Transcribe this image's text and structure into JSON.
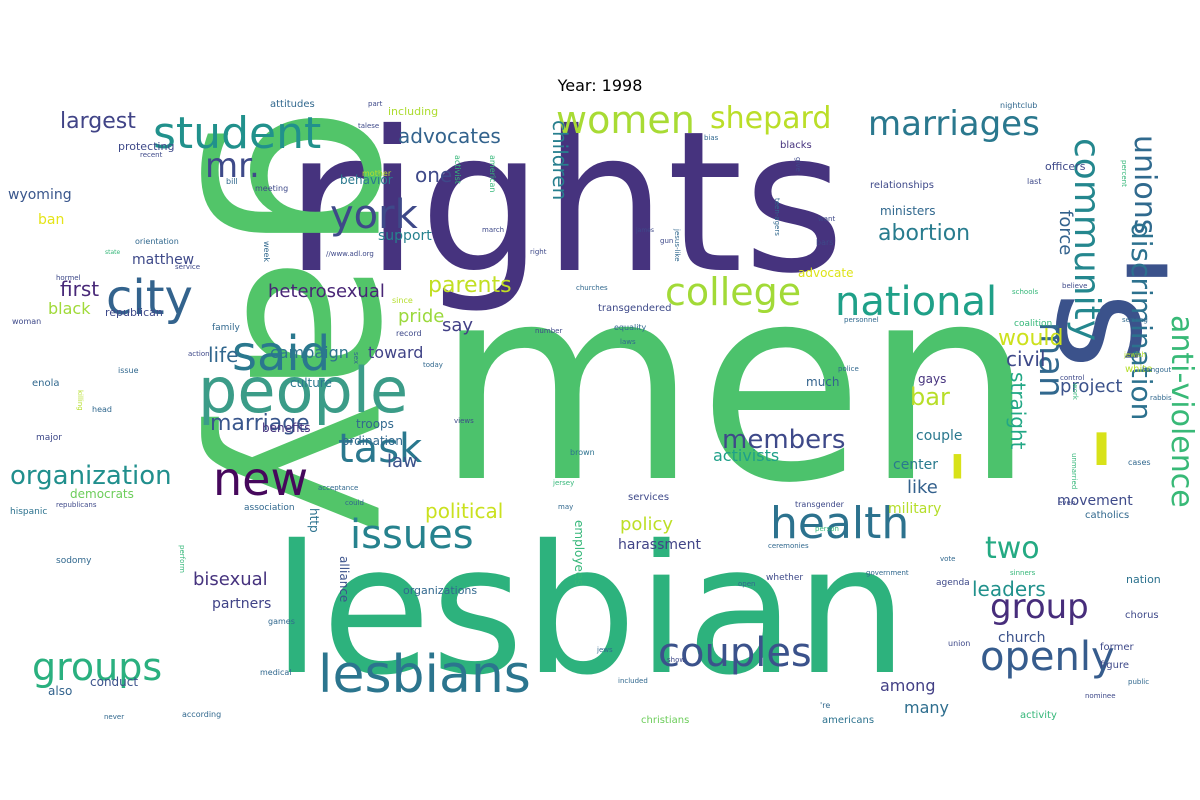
{
  "title": "Year: 1998",
  "palette": {
    "dark_purple": "#482878",
    "indigo": "#3e4989",
    "blue": "#31688e",
    "teal": "#26828e",
    "sea_green": "#1f9e89",
    "green": "#35b779",
    "light_green": "#6ece58",
    "lime": "#b5de2b",
    "yellow": "#e3e418"
  },
  "words": [
    {
      "text": "men",
      "color": "#4cc26c"
    },
    {
      "text": "rights",
      "color": "#46337e"
    },
    {
      "text": "gay",
      "color": "#52c569"
    },
    {
      "text": "lesbian",
      "color": "#2db27d"
    },
    {
      "text": "'s",
      "color": "#3b528b"
    },
    {
      "text": "people",
      "color": "#3b9c88"
    },
    {
      "text": "said",
      "color": "#2a788e"
    },
    {
      "text": "city",
      "color": "#33638d"
    },
    {
      "text": "new",
      "color": "#46085c"
    },
    {
      "text": "student",
      "color": "#21918c"
    },
    {
      "text": "york",
      "color": "#3e4989"
    },
    {
      "text": "mr.",
      "color": "#3e4a89"
    },
    {
      "text": "health",
      "color": "#2c728e"
    },
    {
      "text": "lesbians",
      "color": "#2b758e"
    },
    {
      "text": "couples",
      "color": "#3b528b"
    },
    {
      "text": "issues",
      "color": "#26828e"
    },
    {
      "text": "groups",
      "color": "#2ab07f"
    },
    {
      "text": "openly",
      "color": "#365c8d"
    },
    {
      "text": "group",
      "color": "#472d7b"
    },
    {
      "text": "national",
      "color": "#1fa088"
    },
    {
      "text": "college",
      "color": "#a2da37"
    },
    {
      "text": "women",
      "color": "#a8db34"
    },
    {
      "text": "shepard",
      "color": "#bade28"
    },
    {
      "text": "marriages",
      "color": "#2a788e"
    },
    {
      "text": "community",
      "color": "#24878e"
    },
    {
      "text": "unions",
      "color": "#306a8e"
    },
    {
      "text": "anti-violence",
      "color": "#38b977"
    },
    {
      "text": "discrimination",
      "color": "#2c718e"
    },
    {
      "text": "man",
      "color": "#31688e"
    },
    {
      "text": "'",
      "color": "#d8e219"
    },
    {
      "text": "task",
      "color": "#2a788e"
    },
    {
      "text": "members",
      "color": "#3e4989"
    },
    {
      "text": "two",
      "color": "#24aa83"
    },
    {
      "text": "organization",
      "color": "#218f8d"
    },
    {
      "text": "marriage",
      "color": "#39568c"
    },
    {
      "text": "largest",
      "color": "#414487"
    },
    {
      "text": "advocates",
      "color": "#33638d"
    },
    {
      "text": "abortion",
      "color": "#287c8e"
    },
    {
      "text": "children",
      "color": "#277f8e"
    },
    {
      "text": "one",
      "color": "#3e4989"
    },
    {
      "text": "parents",
      "color": "#c2df23"
    },
    {
      "text": "heterosexual",
      "color": "#482576"
    },
    {
      "text": "life",
      "color": "#31678e"
    },
    {
      "text": "first",
      "color": "#482878"
    },
    {
      "text": "black",
      "color": "#a0da39"
    },
    {
      "text": "say",
      "color": "#424086"
    },
    {
      "text": "pride",
      "color": "#9bd93c"
    },
    {
      "text": "toward",
      "color": "#414487"
    },
    {
      "text": "campaign",
      "color": "#2c738e"
    },
    {
      "text": "bar",
      "color": "#b8de29"
    },
    {
      "text": "would",
      "color": "#cde11d"
    },
    {
      "text": "civil",
      "color": "#3e4989"
    },
    {
      "text": "project",
      "color": "#3b528b"
    },
    {
      "text": "straight",
      "color": "#22a785"
    },
    {
      "text": "force",
      "color": "#33628d"
    },
    {
      "text": "law",
      "color": "#3b528b"
    },
    {
      "text": "political",
      "color": "#cae11f"
    },
    {
      "text": "policy",
      "color": "#bddf26"
    },
    {
      "text": "like",
      "color": "#34618d"
    },
    {
      "text": "center",
      "color": "#297a8e"
    },
    {
      "text": "couple",
      "color": "#2a788e"
    },
    {
      "text": "activists",
      "color": "#1fa088"
    },
    {
      "text": "leaders",
      "color": "#21918c"
    },
    {
      "text": "among",
      "color": "#423f85"
    },
    {
      "text": "many",
      "color": "#2e6e8e"
    },
    {
      "text": "church",
      "color": "#3b528b"
    },
    {
      "text": "military",
      "color": "#b5de2b"
    },
    {
      "text": "movement",
      "color": "#3e4a89"
    },
    {
      "text": "harassment",
      "color": "#414487"
    },
    {
      "text": "bisexual",
      "color": "#46337e"
    },
    {
      "text": "partners",
      "color": "#404387"
    },
    {
      "text": "conduct",
      "color": "#3b528b"
    },
    {
      "text": "also",
      "color": "#33638d"
    },
    {
      "text": "matthew",
      "color": "#3e4989"
    },
    {
      "text": "wyoming",
      "color": "#39568c"
    },
    {
      "text": "support",
      "color": "#26828e"
    },
    {
      "text": "culture",
      "color": "#2a788e"
    },
    {
      "text": "benefits",
      "color": "#46337e"
    },
    {
      "text": "ordination",
      "color": "#31688e"
    },
    {
      "text": "democrats",
      "color": "#6ccd5a"
    },
    {
      "text": "ban",
      "color": "#e5e419"
    },
    {
      "text": "behavior",
      "color": "#2a788e"
    },
    {
      "text": "including",
      "color": "#addc30"
    },
    {
      "text": "protecting",
      "color": "#3e4989"
    },
    {
      "text": "attitudes",
      "color": "#31688e"
    },
    {
      "text": "http",
      "color": "#2c728e"
    },
    {
      "text": "troops",
      "color": "#31688e"
    },
    {
      "text": "alliance",
      "color": "#3b528b"
    },
    {
      "text": "employees",
      "color": "#35b779"
    },
    {
      "text": "gays",
      "color": "#46337e"
    },
    {
      "text": "advocate",
      "color": "#dde318"
    },
    {
      "text": "much",
      "color": "#33638d"
    },
    {
      "text": "ministers",
      "color": "#31688e"
    },
    {
      "text": "officers",
      "color": "#3e4989"
    },
    {
      "text": "nation",
      "color": "#2c728e"
    },
    {
      "text": "organizations",
      "color": "#31688e"
    },
    {
      "text": "republican",
      "color": "#3e4989"
    },
    {
      "text": "family",
      "color": "#31688e"
    },
    {
      "text": "blacks",
      "color": "#46337e"
    },
    {
      "text": "relationships",
      "color": "#3e4989"
    },
    {
      "text": "nightclub",
      "color": "#31688e"
    },
    {
      "text": "catholics",
      "color": "#31688e"
    },
    {
      "text": "christians",
      "color": "#6ccd5a"
    },
    {
      "text": "americans",
      "color": "#2c728e"
    },
    {
      "text": "activity",
      "color": "#35b779"
    },
    {
      "text": "figure",
      "color": "#3e4989"
    },
    {
      "text": "former",
      "color": "#3e4989"
    },
    {
      "text": "chorus",
      "color": "#3e4989"
    },
    {
      "text": "white",
      "color": "#b5de2b"
    },
    {
      "text": "agenda",
      "color": "#3e4989"
    },
    {
      "text": "medical",
      "color": "#31688e"
    },
    {
      "text": "games",
      "color": "#31688e"
    },
    {
      "text": "services",
      "color": "#3e4989"
    },
    {
      "text": "whether",
      "color": "#3e4989"
    },
    {
      "text": "brown",
      "color": "#2c728e"
    },
    {
      "text": "transgendered",
      "color": "#3e4989"
    },
    {
      "text": "equality",
      "color": "#31688e"
    },
    {
      "text": "coalition",
      "color": "#35b779"
    },
    {
      "text": "association",
      "color": "#31688e"
    },
    {
      "text": "ceremonies",
      "color": "#31688e"
    },
    {
      "text": "acceptance",
      "color": "#31688e"
    },
    {
      "text": "sodomy",
      "color": "#31688e"
    },
    {
      "text": "hispanic",
      "color": "#2c728e"
    },
    {
      "text": "enola",
      "color": "#31688e"
    },
    {
      "text": "major",
      "color": "#3e4989"
    },
    {
      "text": "head",
      "color": "#31688e"
    },
    {
      "text": "issue",
      "color": "#31688e"
    },
    {
      "text": "woman",
      "color": "#3e4989"
    },
    {
      "text": "action",
      "color": "#3e4989"
    },
    {
      "text": "since",
      "color": "#b5de2b"
    },
    {
      "text": "record",
      "color": "#3e4989"
    },
    {
      "text": "today",
      "color": "#31688e"
    },
    {
      "text": "number",
      "color": "#3e4989"
    },
    {
      "text": "sex",
      "color": "#31688e"
    },
    {
      "text": "views",
      "color": "#3e4989"
    },
    {
      "text": "killing",
      "color": "#b5de2b"
    },
    {
      "text": "open",
      "color": "#31688e"
    },
    {
      "text": "show",
      "color": "#3e4989"
    },
    {
      "text": "jews",
      "color": "#31688e"
    },
    {
      "text": "'re",
      "color": "#31688e"
    },
    {
      "text": "included",
      "color": "#31688e"
    },
    {
      "text": "according",
      "color": "#31688e"
    },
    {
      "text": "never",
      "color": "#31688e"
    },
    {
      "text": "public",
      "color": "#31688e"
    },
    {
      "text": "union",
      "color": "#3e4989"
    },
    {
      "text": "government",
      "color": "#31688e"
    },
    {
      "text": "sinners",
      "color": "#35b779"
    },
    {
      "text": "vote",
      "color": "#31688e"
    },
    {
      "text": "even",
      "color": "#3e4989"
    },
    {
      "text": "cases",
      "color": "#31688e"
    },
    {
      "text": "person",
      "color": "#35b779"
    },
    {
      "text": "unmarried",
      "color": "#35b779"
    },
    {
      "text": "rabbis",
      "color": "#31688e"
    },
    {
      "text": "hangout",
      "color": "#31688e"
    },
    {
      "text": "jewish",
      "color": "#b5de2b"
    },
    {
      "text": "serving",
      "color": "#31688e"
    },
    {
      "text": "believe",
      "color": "#3e4989"
    },
    {
      "text": "schools",
      "color": "#35b779"
    },
    {
      "text": "personnel",
      "color": "#31688e"
    },
    {
      "text": "laws",
      "color": "#31688e"
    },
    {
      "text": "police",
      "color": "#31688e"
    },
    {
      "text": "control",
      "color": "#3e4989"
    },
    {
      "text": "work",
      "color": "#35b779"
    },
    {
      "text": "percent",
      "color": "#35b779"
    },
    {
      "text": "last",
      "color": "#3e4989"
    },
    {
      "text": "mother",
      "color": "#b5de2b"
    },
    {
      "text": "meeting",
      "color": "#3e4989"
    },
    {
      "text": "bill",
      "color": "#31688e"
    },
    {
      "text": "recent",
      "color": "#3e4989"
    },
    {
      "text": "orientation",
      "color": "#31688e"
    },
    {
      "text": "state",
      "color": "#35b779"
    },
    {
      "text": "service",
      "color": "#3e4989"
    },
    {
      "text": "hormel",
      "color": "#3e4989"
    },
    {
      "text": "week",
      "color": "#31688e"
    },
    {
      "text": "//www.adl.org",
      "color": "#3e4989"
    },
    {
      "text": "activist",
      "color": "#35b779"
    },
    {
      "text": "american",
      "color": "#35b779"
    },
    {
      "text": "march",
      "color": "#3e4989"
    },
    {
      "text": "right",
      "color": "#3e4989"
    },
    {
      "text": "james",
      "color": "#3e4989"
    },
    {
      "text": "jesus-like",
      "color": "#31688e"
    },
    {
      "text": "teen-agers",
      "color": "#31688e"
    },
    {
      "text": "give",
      "color": "#3e4989"
    },
    {
      "text": "want",
      "color": "#3e4989"
    },
    {
      "text": "bars",
      "color": "#3e4989"
    },
    {
      "text": "gun",
      "color": "#3e4989"
    },
    {
      "text": "churches",
      "color": "#31688e"
    },
    {
      "text": "part",
      "color": "#3e4989"
    },
    {
      "text": "talese",
      "color": "#3e4989"
    },
    {
      "text": "bias",
      "color": "#31688e"
    },
    {
      "text": "could",
      "color": "#31688e"
    },
    {
      "text": "may",
      "color": "#31688e"
    },
    {
      "text": "jersey",
      "color": "#35b779"
    },
    {
      "text": "transgender",
      "color": "#3e4989"
    },
    {
      "text": "nominee",
      "color": "#3e4989"
    },
    {
      "text": "republicans",
      "color": "#3e4989"
    },
    {
      "text": "perform",
      "color": "#35b779"
    }
  ]
}
